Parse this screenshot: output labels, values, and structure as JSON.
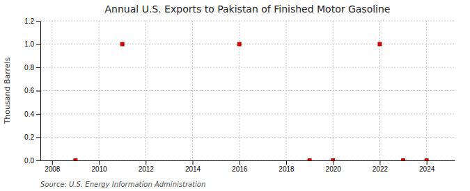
{
  "chart_data": {
    "type": "scatter",
    "title": "Annual U.S. Exports to Pakistan of Finished Motor Gasoline",
    "ylabel": "Thousand Barrels",
    "annotation": "Source: U.S. Energy Information Administration",
    "x": [
      2009,
      2011,
      2016,
      2019,
      2020,
      2022,
      2023,
      2024
    ],
    "values": [
      0.0,
      1.0,
      1.0,
      0.0,
      0.0,
      1.0,
      0.0,
      0.0
    ],
    "color": "#cc0000",
    "marker": "square",
    "xlim": [
      2007.5,
      2025.2
    ],
    "xticks": [
      2008,
      2010,
      2012,
      2014,
      2016,
      2018,
      2020,
      2022,
      2024
    ],
    "ylim": [
      0.0,
      1.2
    ],
    "yticks": [
      {
        "value": 0.0,
        "label": "0.0"
      },
      0.2,
      0.4,
      0.6,
      0.8,
      {
        "value": 1.0,
        "label": "1.0"
      },
      1.2
    ],
    "grid": true
  }
}
